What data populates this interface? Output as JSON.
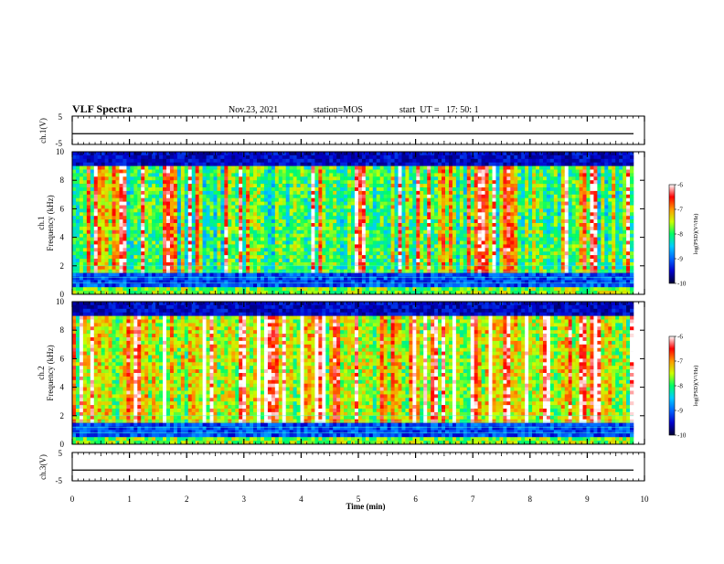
{
  "header": {
    "title": "VLF Spectra",
    "date": "Nov.23, 2021",
    "station": "station=MOS",
    "start": "start  UT =   17: 50: 1"
  },
  "chart_data": [
    {
      "type": "line",
      "name": "ch1-waveform",
      "ylabel": "ch.1(V)",
      "ylim": [
        -5,
        5
      ],
      "yticks": [
        "5",
        "-5"
      ],
      "xlim": [
        0,
        10
      ],
      "baseline": -1.2
    },
    {
      "type": "heatmap",
      "name": "ch1-spectrogram",
      "ylabel": "ch.1\nFrequency (kHz)",
      "ylim": [
        0,
        10
      ],
      "yticks": [
        "0",
        "2",
        "4",
        "6",
        "8",
        "10"
      ],
      "xlim": [
        0,
        10
      ],
      "colorbar": {
        "range": [
          -10,
          -6
        ],
        "ticks": [
          "-6",
          "-7",
          "-8",
          "-9",
          "-10"
        ],
        "label": "log(PSD)(V²/Hz)"
      }
    },
    {
      "type": "heatmap",
      "name": "ch2-spectrogram",
      "ylabel": "ch.2\nFrequency (kHz)",
      "ylim": [
        0,
        10
      ],
      "yticks": [
        "0",
        "2",
        "4",
        "6",
        "8",
        "10"
      ],
      "xlim": [
        0,
        10
      ],
      "colorbar": {
        "range": [
          -10,
          -6
        ],
        "ticks": [
          "-6",
          "-7",
          "-8",
          "-9",
          "-10"
        ],
        "label": "log(PSD)(V²/Hz)"
      }
    },
    {
      "type": "line",
      "name": "ch3-waveform",
      "ylabel": "ch.3(V)",
      "ylim": [
        -5,
        5
      ],
      "yticks": [
        "5",
        "-5"
      ],
      "xlim": [
        0,
        10
      ],
      "baseline": -1.2
    }
  ],
  "xaxis": {
    "label": "Time (min)",
    "ticks": [
      "0",
      "1",
      "2",
      "3",
      "4",
      "5",
      "6",
      "7",
      "8",
      "9",
      "10"
    ]
  },
  "colors": {
    "colormap": [
      "#000033",
      "#0000cc",
      "#0066ff",
      "#00ccff",
      "#00ff66",
      "#ccff00",
      "#ff9900",
      "#ff0000",
      "#ffffff"
    ]
  }
}
